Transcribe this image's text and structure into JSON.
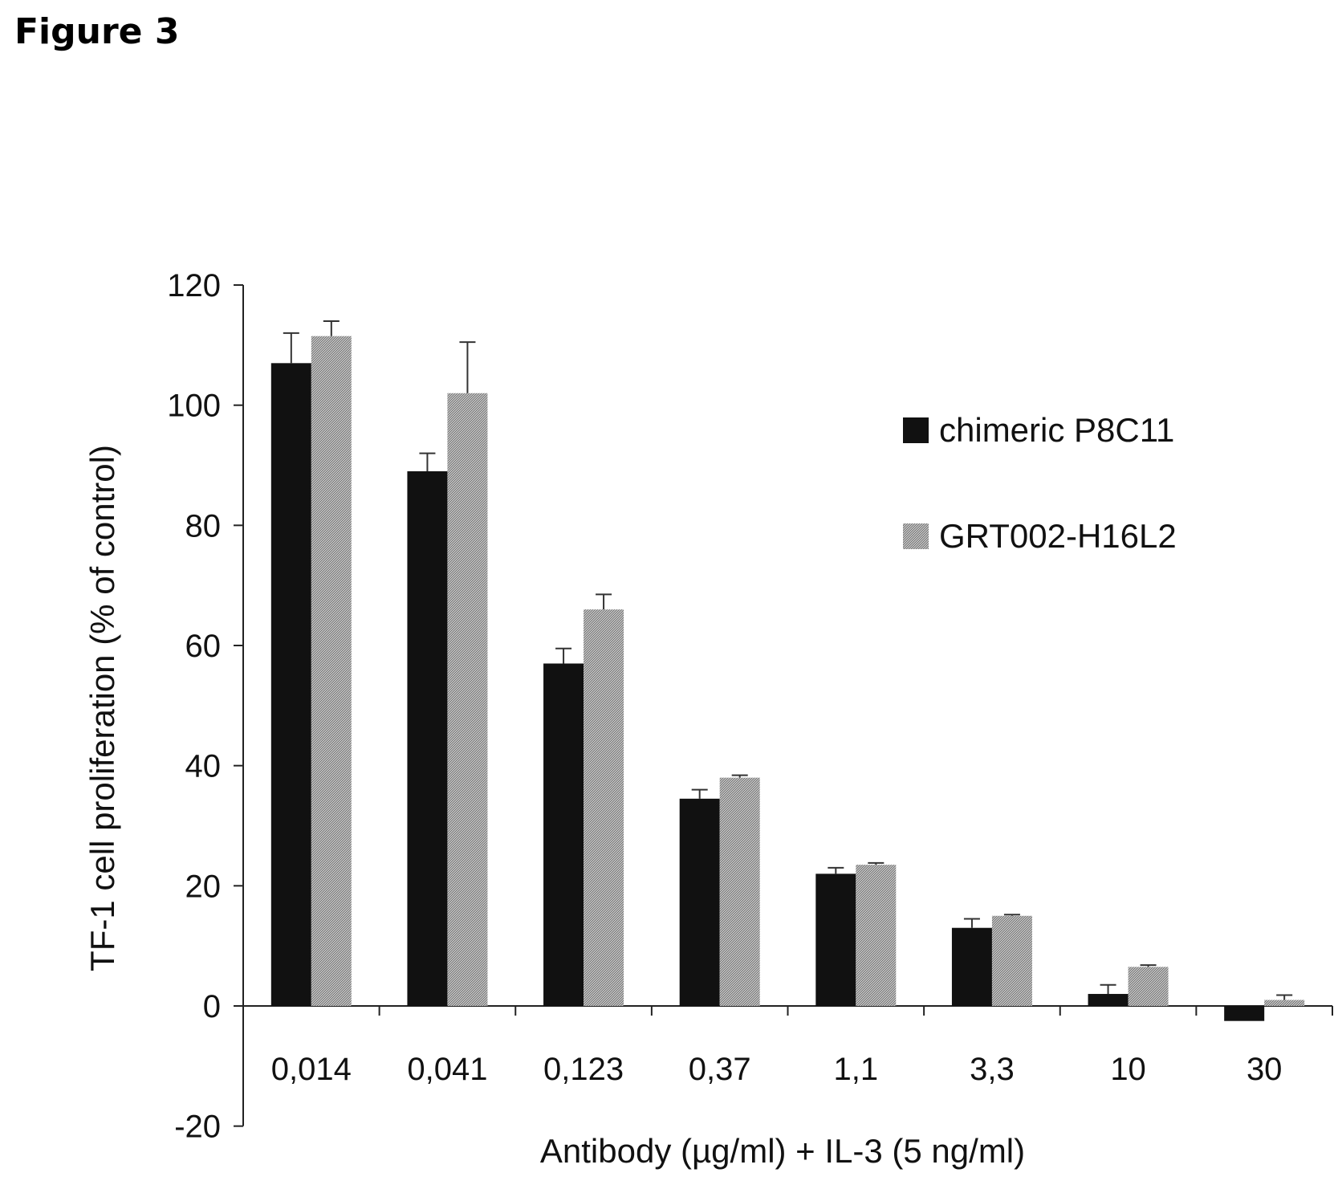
{
  "figure_title": "Figure 3",
  "chart_data": {
    "type": "bar",
    "title": "",
    "xlabel": "Antibody (µg/ml) + IL-3 (5 ng/ml)",
    "ylabel": "TF-1 cell proliferation (% of control)",
    "categories": [
      "0,014",
      "0,041",
      "0,123",
      "0,37",
      "1,1",
      "3,3",
      "10",
      "30"
    ],
    "ylim": [
      -20,
      120
    ],
    "yticks": [
      -20,
      0,
      20,
      40,
      60,
      80,
      100,
      120
    ],
    "grid": false,
    "legend_position": "right",
    "series": [
      {
        "name": "chimeric P8C11",
        "color": "#111111",
        "values": [
          107,
          89,
          57,
          34.5,
          22,
          13,
          2,
          -2.5
        ],
        "errors": [
          5,
          3,
          2.5,
          1.5,
          1,
          1.5,
          1.5,
          0
        ]
      },
      {
        "name": "GRT002-H16L2",
        "color": "#9a9a9a",
        "values": [
          111.5,
          102,
          66,
          38,
          23.5,
          15,
          6.5,
          1
        ],
        "errors": [
          2.5,
          8.5,
          2.5,
          0.4,
          0.3,
          0.2,
          0.3,
          0.8
        ]
      }
    ]
  }
}
